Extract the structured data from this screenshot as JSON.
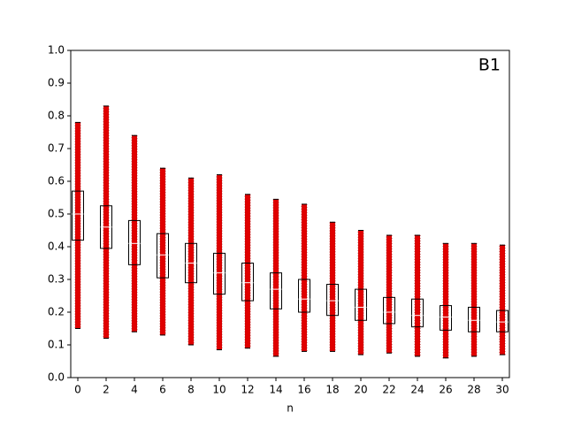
{
  "chart_data": {
    "type": "box",
    "x": [
      0,
      2,
      4,
      6,
      8,
      10,
      12,
      14,
      16,
      18,
      20,
      22,
      24,
      26,
      28,
      30
    ],
    "min": [
      0.15,
      0.12,
      0.14,
      0.13,
      0.1,
      0.085,
      0.09,
      0.065,
      0.08,
      0.08,
      0.07,
      0.075,
      0.065,
      0.06,
      0.065,
      0.07
    ],
    "q1": [
      0.42,
      0.395,
      0.345,
      0.305,
      0.29,
      0.255,
      0.235,
      0.21,
      0.2,
      0.19,
      0.175,
      0.165,
      0.155,
      0.145,
      0.14,
      0.14
    ],
    "median": [
      0.5,
      0.46,
      0.41,
      0.375,
      0.35,
      0.32,
      0.29,
      0.27,
      0.24,
      0.235,
      0.215,
      0.2,
      0.19,
      0.185,
      0.175,
      0.17
    ],
    "q3": [
      0.57,
      0.525,
      0.48,
      0.44,
      0.41,
      0.38,
      0.35,
      0.32,
      0.3,
      0.285,
      0.27,
      0.245,
      0.24,
      0.22,
      0.215,
      0.205
    ],
    "max": [
      0.78,
      0.83,
      0.74,
      0.64,
      0.61,
      0.62,
      0.56,
      0.545,
      0.53,
      0.475,
      0.45,
      0.435,
      0.435,
      0.41,
      0.41,
      0.405
    ],
    "point_color": "#e00000",
    "box_color": "#000000",
    "median_color": "#ffffff",
    "xlabel": "n",
    "annotation": "B1",
    "xlim": [
      -0.5,
      30.5
    ],
    "xticks": [
      0,
      2,
      4,
      6,
      8,
      10,
      12,
      14,
      16,
      18,
      20,
      22,
      24,
      26,
      28,
      30
    ],
    "ylim": [
      0,
      1
    ],
    "yticks": [
      {
        "value": 0,
        "label": "0.0"
      },
      0.1,
      0.2,
      0.3,
      0.4,
      0.5,
      0.6,
      0.7,
      0.8,
      0.9,
      {
        "value": 1,
        "label": "1.0"
      }
    ]
  }
}
